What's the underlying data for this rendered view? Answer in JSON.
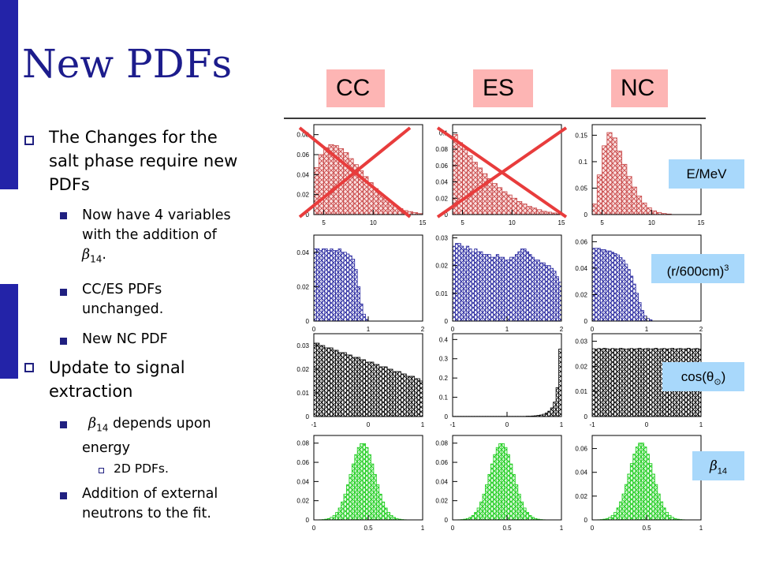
{
  "title": "New PDFs",
  "colors": {
    "title": "#1c1c8c",
    "left_bar_blue": "#2323a8",
    "header_bg": "#fdb5b4",
    "label_bg": "#a8d8fb",
    "energy_hist": "#c84848",
    "radius_hist": "#2a2aa0",
    "cos_hist": "#000000",
    "beta_hist": "#1ecc1e",
    "cross": "#e83c3c"
  },
  "bullets": [
    {
      "level": 1,
      "lines": [
        "The Changes for the",
        "salt phase require new",
        "PDFs"
      ]
    },
    {
      "level": 2,
      "lines": [
        "Now have 4 variables",
        "with the addition of"
      ]
    },
    {
      "level": 2,
      "lines": [
        "CC/ES PDFs",
        "unchanged."
      ]
    },
    {
      "level": 2,
      "lines": [
        "New NC PDF"
      ]
    },
    {
      "level": 1,
      "lines": [
        "Update to signal",
        "extraction"
      ]
    },
    {
      "level": 2,
      "lines": [
        "depends upon",
        "energy"
      ]
    },
    {
      "level": 3,
      "lines": [
        "2D PDFs."
      ]
    },
    {
      "level": 2,
      "lines": [
        "Addition of external",
        "neutrons to the fit."
      ]
    }
  ],
  "beta_symbol": "β",
  "beta_sub": "14",
  "period": ".",
  "column_headers": [
    "CC",
    "ES",
    "NC"
  ],
  "row_labels": [
    {
      "main": "E/MeV",
      "sup": "",
      "sub": ""
    },
    {
      "main": "(r/600cm)",
      "sup": "3",
      "sub": ""
    },
    {
      "main": "cos(θ",
      "sub": "⊙",
      "tail": ")"
    },
    {
      "main": "β",
      "sub": "14"
    }
  ],
  "crossed_out": [
    "CC energy",
    "ES energy"
  ],
  "chart_data": [
    {
      "type": "bar",
      "name_hint": "CC energy",
      "column": "CC",
      "variable": "E/MeV",
      "xlim": [
        4,
        15
      ],
      "ylim": [
        0,
        0.09
      ],
      "x_ticks": [
        "5",
        "10",
        "15"
      ],
      "y_ticks": [
        "0",
        "0.02",
        "0.04",
        "0.06",
        "0.08"
      ],
      "bin_edges_start": 4,
      "bin_width": 0.5,
      "values": [
        0.047,
        0.06,
        0.067,
        0.07,
        0.069,
        0.066,
        0.062,
        0.056,
        0.05,
        0.044,
        0.038,
        0.032,
        0.026,
        0.021,
        0.016,
        0.012,
        0.009,
        0.006,
        0.004,
        0.003,
        0.002,
        0.001
      ]
    },
    {
      "type": "bar",
      "name_hint": "ES energy",
      "column": "ES",
      "variable": "E/MeV",
      "xlim": [
        4,
        15
      ],
      "ylim": [
        0,
        0.11
      ],
      "x_ticks": [
        "5",
        "10",
        "15"
      ],
      "y_ticks": [
        "0",
        "0.02",
        "0.04",
        "0.06",
        "0.08",
        "0.1"
      ],
      "bin_edges_start": 4,
      "bin_width": 0.5,
      "values": [
        0.098,
        0.088,
        0.08,
        0.072,
        0.064,
        0.057,
        0.05,
        0.044,
        0.038,
        0.033,
        0.028,
        0.024,
        0.02,
        0.016,
        0.013,
        0.01,
        0.008,
        0.006,
        0.004,
        0.003,
        0.002,
        0.001
      ]
    },
    {
      "type": "bar",
      "name_hint": "NC energy",
      "column": "NC",
      "variable": "E/MeV",
      "xlim": [
        4,
        15
      ],
      "ylim": [
        0,
        0.17
      ],
      "x_ticks": [
        "5",
        "10",
        "15"
      ],
      "y_ticks": [
        "0",
        "0.05",
        "0.1",
        "0.15"
      ],
      "bin_edges_start": 4,
      "bin_width": 0.5,
      "values": [
        0.02,
        0.075,
        0.13,
        0.155,
        0.145,
        0.12,
        0.095,
        0.072,
        0.052,
        0.035,
        0.022,
        0.013,
        0.007,
        0.004,
        0.002,
        0.001,
        0,
        0,
        0,
        0,
        0,
        0
      ]
    },
    {
      "type": "bar",
      "name_hint": "CC radius",
      "column": "CC",
      "variable": "(r/600cm)^3",
      "xlim": [
        0,
        2
      ],
      "ylim": [
        0,
        0.05
      ],
      "x_ticks": [
        "0",
        "1",
        "2"
      ],
      "y_ticks": [
        "0",
        "0.02",
        "0.04"
      ],
      "bin_edges_start": 0,
      "bin_width": 0.05,
      "values": [
        0.042,
        0.042,
        0.041,
        0.042,
        0.042,
        0.041,
        0.042,
        0.041,
        0.041,
        0.042,
        0.04,
        0.04,
        0.039,
        0.038,
        0.036,
        0.03,
        0.02,
        0.01,
        0.004,
        0.001,
        0,
        0,
        0,
        0,
        0,
        0,
        0,
        0,
        0,
        0,
        0,
        0,
        0,
        0,
        0,
        0,
        0,
        0,
        0,
        0
      ]
    },
    {
      "type": "bar",
      "name_hint": "ES radius",
      "column": "ES",
      "variable": "(r/600cm)^3",
      "xlim": [
        0,
        2
      ],
      "ylim": [
        0,
        0.031
      ],
      "x_ticks": [
        "0",
        "1",
        "2"
      ],
      "y_ticks": [
        "0",
        "0.01",
        "0.02",
        "0.03"
      ],
      "bin_edges_start": 0,
      "bin_width": 0.05,
      "values": [
        0.027,
        0.028,
        0.028,
        0.027,
        0.026,
        0.027,
        0.026,
        0.025,
        0.026,
        0.025,
        0.025,
        0.024,
        0.024,
        0.024,
        0.023,
        0.023,
        0.024,
        0.023,
        0.023,
        0.022,
        0.022,
        0.023,
        0.023,
        0.024,
        0.025,
        0.026,
        0.026,
        0.025,
        0.024,
        0.023,
        0.022,
        0.022,
        0.021,
        0.021,
        0.02,
        0.02,
        0.019,
        0.018,
        0.016,
        0.014
      ]
    },
    {
      "type": "bar",
      "name_hint": "NC radius",
      "column": "NC",
      "variable": "(r/600cm)^3",
      "xlim": [
        0,
        2
      ],
      "ylim": [
        0,
        0.065
      ],
      "x_ticks": [
        "0",
        "1",
        "2"
      ],
      "y_ticks": [
        "0",
        "0.02",
        "0.04",
        "0.06"
      ],
      "bin_edges_start": 0,
      "bin_width": 0.05,
      "values": [
        0.055,
        0.055,
        0.055,
        0.054,
        0.054,
        0.053,
        0.053,
        0.052,
        0.051,
        0.05,
        0.048,
        0.046,
        0.043,
        0.039,
        0.034,
        0.028,
        0.021,
        0.014,
        0.008,
        0.004,
        0.002,
        0.001,
        0,
        0,
        0,
        0,
        0,
        0,
        0,
        0,
        0,
        0,
        0,
        0,
        0,
        0,
        0,
        0,
        0,
        0
      ]
    },
    {
      "type": "bar",
      "name_hint": "CC cos",
      "column": "CC",
      "variable": "cos(theta_sun)",
      "xlim": [
        -1,
        1
      ],
      "ylim": [
        0,
        0.035
      ],
      "x_ticks": [
        "-1",
        "0",
        "1"
      ],
      "y_ticks": [
        "0",
        "0.01",
        "0.02",
        "0.03"
      ],
      "bin_edges_start": -1,
      "bin_width": 0.05,
      "values": [
        0.031,
        0.031,
        0.03,
        0.03,
        0.029,
        0.029,
        0.029,
        0.028,
        0.028,
        0.027,
        0.027,
        0.027,
        0.026,
        0.026,
        0.025,
        0.025,
        0.025,
        0.024,
        0.024,
        0.023,
        0.023,
        0.023,
        0.022,
        0.022,
        0.021,
        0.021,
        0.021,
        0.02,
        0.02,
        0.019,
        0.019,
        0.019,
        0.018,
        0.018,
        0.017,
        0.017,
        0.017,
        0.016,
        0.016,
        0.015
      ]
    },
    {
      "type": "bar",
      "name_hint": "ES cos",
      "column": "ES",
      "variable": "cos(theta_sun)",
      "xlim": [
        -1,
        1
      ],
      "ylim": [
        0,
        0.43
      ],
      "x_ticks": [
        "-1",
        "0",
        "1"
      ],
      "y_ticks": [
        "0",
        "0.1",
        "0.2",
        "0.3",
        "0.4"
      ],
      "bin_edges_start": -1,
      "bin_width": 0.05,
      "values": [
        0.001,
        0.001,
        0.001,
        0.001,
        0.001,
        0.001,
        0.001,
        0.001,
        0.001,
        0.001,
        0.001,
        0.001,
        0.001,
        0.001,
        0.001,
        0.001,
        0.001,
        0.001,
        0.001,
        0.001,
        0.001,
        0.001,
        0.001,
        0.001,
        0.001,
        0.001,
        0.001,
        0.002,
        0.002,
        0.003,
        0.004,
        0.006,
        0.008,
        0.012,
        0.018,
        0.028,
        0.045,
        0.075,
        0.15,
        0.35
      ]
    },
    {
      "type": "bar",
      "name_hint": "NC cos",
      "column": "NC",
      "variable": "cos(theta_sun)",
      "xlim": [
        -1,
        1
      ],
      "ylim": [
        0,
        0.033
      ],
      "x_ticks": [
        "-1",
        "0",
        "1"
      ],
      "y_ticks": [
        "0",
        "0.01",
        "0.02",
        "0.03"
      ],
      "bin_edges_start": -1,
      "bin_width": 0.05,
      "values": [
        0.027,
        0.0268,
        0.0271,
        0.0269,
        0.0272,
        0.027,
        0.0268,
        0.0271,
        0.027,
        0.0269,
        0.0272,
        0.027,
        0.0268,
        0.027,
        0.0271,
        0.0269,
        0.027,
        0.0272,
        0.0268,
        0.027,
        0.0271,
        0.0269,
        0.027,
        0.0272,
        0.0268,
        0.027,
        0.0271,
        0.0269,
        0.027,
        0.0272,
        0.0268,
        0.027,
        0.0271,
        0.0269,
        0.027,
        0.0272,
        0.0268,
        0.027,
        0.0271,
        0.0269
      ]
    },
    {
      "type": "bar",
      "name_hint": "CC beta14",
      "column": "CC",
      "variable": "beta14",
      "xlim": [
        0,
        1
      ],
      "ylim": [
        0,
        0.088
      ],
      "x_ticks": [
        "0",
        "0.5",
        "1"
      ],
      "y_ticks": [
        "0",
        "0.02",
        "0.04",
        "0.06",
        "0.08"
      ],
      "gaussian": {
        "mean": 0.45,
        "sigma": 0.11,
        "peak": 0.08
      },
      "bin_edges_start": 0,
      "bin_width": 0.025
    },
    {
      "type": "bar",
      "name_hint": "ES beta14",
      "column": "ES",
      "variable": "beta14",
      "xlim": [
        0,
        1
      ],
      "ylim": [
        0,
        0.088
      ],
      "x_ticks": [
        "0",
        "0.5",
        "1"
      ],
      "y_ticks": [
        "0",
        "0.02",
        "0.04",
        "0.06",
        "0.08"
      ],
      "gaussian": {
        "mean": 0.45,
        "sigma": 0.11,
        "peak": 0.08
      },
      "bin_edges_start": 0,
      "bin_width": 0.025
    },
    {
      "type": "bar",
      "name_hint": "NC beta14",
      "column": "NC",
      "variable": "beta14",
      "xlim": [
        0,
        1
      ],
      "ylim": [
        0,
        0.071
      ],
      "x_ticks": [
        "0",
        "0.5",
        "1"
      ],
      "y_ticks": [
        "0",
        "0.02",
        "0.04",
        "0.06"
      ],
      "gaussian": {
        "mean": 0.45,
        "sigma": 0.11,
        "peak": 0.065
      },
      "bin_edges_start": 0,
      "bin_width": 0.025
    }
  ]
}
